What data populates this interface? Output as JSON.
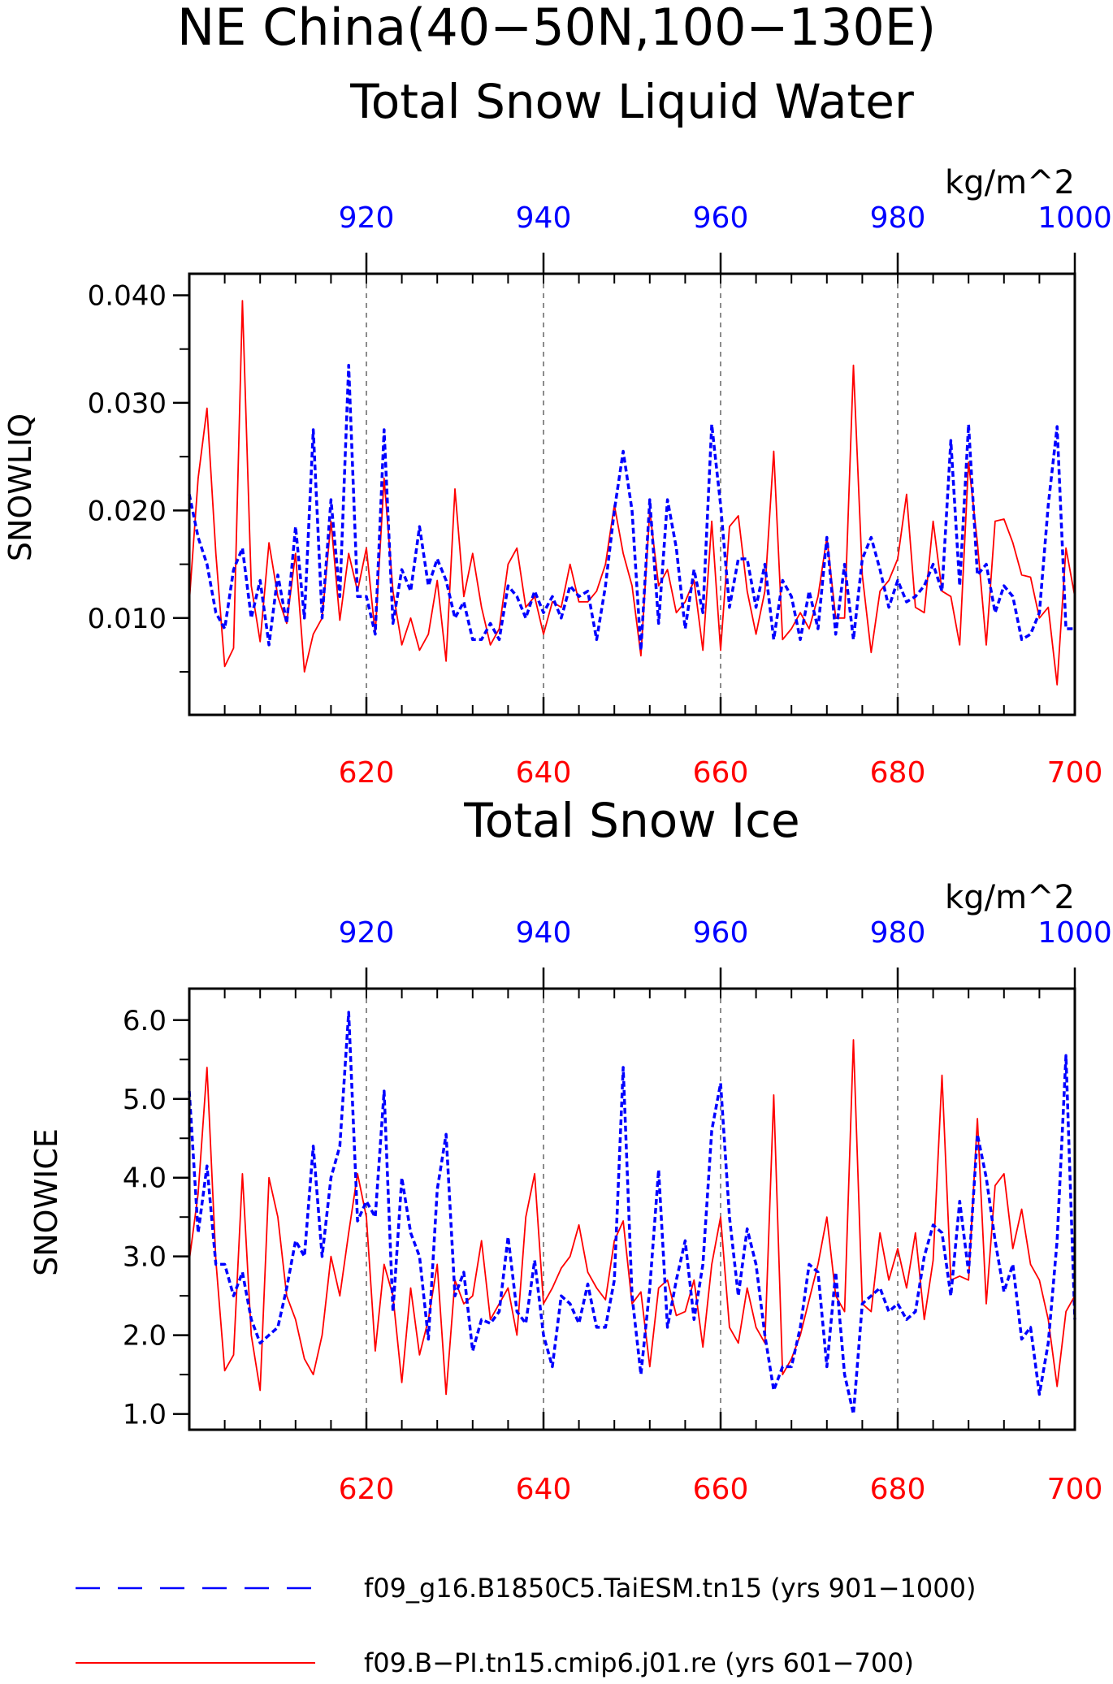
{
  "figure": {
    "title_line1": "NE China(40−50N,100−130E)"
  },
  "legend": {
    "colors": {
      "blue": "#0000ff",
      "red": "#ff0000"
    },
    "items": [
      {
        "label": "f09_g16.B1850C5.TaiESM.tn15 (yrs 901−1000)",
        "color": "#0000ff",
        "style": "dashed"
      },
      {
        "label": "f09.B−PI.tn15.cmip6.j01.re (yrs 601−700)",
        "color": "#ff0000",
        "style": "solid"
      }
    ]
  },
  "chart_data": [
    {
      "type": "line",
      "title": "Total Snow Liquid Water",
      "ylabel": "SNOWLIQ",
      "units": "kg/m^2",
      "ylim": [
        0.001,
        0.042
      ],
      "yticks": [
        "0.040",
        "0.030",
        "0.020",
        "0.010"
      ],
      "ytick_values": [
        0.04,
        0.03,
        0.02,
        0.01
      ],
      "xlim_bottom": [
        600,
        700
      ],
      "xticks_bottom": [
        "620",
        "640",
        "660",
        "680",
        "700"
      ],
      "xlim_top": [
        900,
        1000
      ],
      "xticks_top": [
        "920",
        "940",
        "960",
        "980",
        "1000"
      ],
      "grid": "vertical dashed at 620, 640, 660, 680",
      "series": [
        {
          "name": "f09.B−PI.tn15.cmip6.j01.re (yrs 601−700)",
          "axis": "bottom",
          "color": "#ff0000",
          "style": "solid",
          "x_start": 600,
          "values": [
            0.0115,
            0.023,
            0.0295,
            0.016,
            0.0055,
            0.0072,
            0.0395,
            0.013,
            0.0078,
            0.017,
            0.012,
            0.0095,
            0.016,
            0.005,
            0.0085,
            0.01,
            0.019,
            0.0098,
            0.016,
            0.0125,
            0.0165,
            0.0085,
            0.023,
            0.0125,
            0.0075,
            0.01,
            0.007,
            0.0085,
            0.0135,
            0.006,
            0.022,
            0.012,
            0.016,
            0.011,
            0.0075,
            0.009,
            0.015,
            0.0165,
            0.011,
            0.012,
            0.0085,
            0.0115,
            0.011,
            0.015,
            0.0115,
            0.0115,
            0.0125,
            0.015,
            0.0205,
            0.016,
            0.013,
            0.0065,
            0.02,
            0.013,
            0.0145,
            0.0105,
            0.0115,
            0.0135,
            0.007,
            0.019,
            0.007,
            0.0185,
            0.0195,
            0.0125,
            0.0085,
            0.0125,
            0.0255,
            0.008,
            0.009,
            0.0105,
            0.009,
            0.012,
            0.0175,
            0.01,
            0.01,
            0.0335,
            0.014,
            0.0068,
            0.0125,
            0.0135,
            0.0155,
            0.0215,
            0.011,
            0.0105,
            0.019,
            0.0125,
            0.012,
            0.0075,
            0.0245,
            0.017,
            0.0075,
            0.019,
            0.0192,
            0.017,
            0.014,
            0.0138,
            0.01,
            0.011,
            0.0038,
            0.0165,
            0.012
          ]
        },
        {
          "name": "f09_g16.B1850C5.TaiESM.tn15 (yrs 901−1000)",
          "axis": "top",
          "color": "#0000ff",
          "style": "dashed",
          "x_start": 900,
          "values": [
            0.0215,
            0.0175,
            0.015,
            0.0105,
            0.009,
            0.0145,
            0.0165,
            0.01,
            0.0135,
            0.0075,
            0.014,
            0.0095,
            0.0185,
            0.01,
            0.0275,
            0.01,
            0.021,
            0.012,
            0.0335,
            0.012,
            0.012,
            0.0085,
            0.0275,
            0.0095,
            0.0145,
            0.0125,
            0.0185,
            0.013,
            0.0155,
            0.0135,
            0.01,
            0.0115,
            0.008,
            0.008,
            0.0095,
            0.008,
            0.013,
            0.012,
            0.01,
            0.0125,
            0.0105,
            0.012,
            0.01,
            0.013,
            0.012,
            0.0125,
            0.008,
            0.013,
            0.02,
            0.0255,
            0.02,
            0.007,
            0.021,
            0.0095,
            0.021,
            0.0165,
            0.009,
            0.0145,
            0.0105,
            0.028,
            0.0205,
            0.011,
            0.0155,
            0.0155,
            0.011,
            0.015,
            0.008,
            0.0135,
            0.012,
            0.008,
            0.0125,
            0.009,
            0.0175,
            0.0085,
            0.015,
            0.008,
            0.0155,
            0.0175,
            0.0145,
            0.011,
            0.0135,
            0.0115,
            0.012,
            0.013,
            0.015,
            0.0125,
            0.0265,
            0.013,
            0.028,
            0.014,
            0.015,
            0.0105,
            0.013,
            0.012,
            0.008,
            0.0085,
            0.0105,
            0.0205,
            0.0278,
            0.009,
            0.009
          ]
        }
      ]
    },
    {
      "type": "line",
      "title": "Total Snow Ice",
      "ylabel": "SNOWICE",
      "units": "kg/m^2",
      "ylim": [
        0.8,
        6.4
      ],
      "yticks": [
        "6.0",
        "5.0",
        "4.0",
        "3.0",
        "2.0",
        "1.0"
      ],
      "ytick_values": [
        6.0,
        5.0,
        4.0,
        3.0,
        2.0,
        1.0
      ],
      "xlim_bottom": [
        600,
        700
      ],
      "xticks_bottom": [
        "620",
        "640",
        "660",
        "680",
        "700"
      ],
      "xlim_top": [
        900,
        1000
      ],
      "xticks_top": [
        "920",
        "940",
        "960",
        "980",
        "1000"
      ],
      "grid": "vertical dashed at 620, 640, 660, 680",
      "series": [
        {
          "name": "f09.B−PI.tn15.cmip6.j01.re (yrs 601−700)",
          "axis": "bottom",
          "color": "#ff0000",
          "style": "solid",
          "x_start": 600,
          "values": [
            2.95,
            3.8,
            5.4,
            2.95,
            1.55,
            1.75,
            4.05,
            2.0,
            1.3,
            4.0,
            3.5,
            2.5,
            2.2,
            1.7,
            1.5,
            2.0,
            3.0,
            2.5,
            3.3,
            4.05,
            3.5,
            1.8,
            2.9,
            2.5,
            1.4,
            2.6,
            1.75,
            2.2,
            2.9,
            1.25,
            2.7,
            2.4,
            2.5,
            3.2,
            2.2,
            2.4,
            2.6,
            2.0,
            3.5,
            4.05,
            2.4,
            2.6,
            2.85,
            3.0,
            3.4,
            2.8,
            2.6,
            2.45,
            3.2,
            3.45,
            2.4,
            2.55,
            1.6,
            2.6,
            2.7,
            2.25,
            2.3,
            2.7,
            1.85,
            2.9,
            3.5,
            2.1,
            1.9,
            2.6,
            2.1,
            1.9,
            5.05,
            1.5,
            1.7,
            2.0,
            2.45,
            2.9,
            3.5,
            2.5,
            2.3,
            5.75,
            2.4,
            2.3,
            3.3,
            2.7,
            3.1,
            2.6,
            3.3,
            2.2,
            2.95,
            5.3,
            2.7,
            2.75,
            2.7,
            4.75,
            2.4,
            3.9,
            4.05,
            3.1,
            3.6,
            2.9,
            2.7,
            2.2,
            1.35,
            2.3,
            2.5
          ]
        },
        {
          "name": "f09_g16.B1850C5.TaiESM.tn15 (yrs 901−1000)",
          "axis": "top",
          "color": "#0000ff",
          "style": "dashed",
          "x_start": 900,
          "values": [
            5.1,
            3.3,
            4.15,
            2.9,
            2.9,
            2.5,
            2.8,
            2.2,
            1.9,
            2.0,
            2.1,
            2.6,
            3.2,
            3.0,
            4.4,
            3.0,
            4.0,
            4.4,
            6.1,
            3.45,
            3.7,
            3.5,
            5.1,
            2.3,
            4.0,
            3.3,
            3.0,
            1.95,
            3.85,
            4.55,
            2.5,
            2.8,
            1.8,
            2.2,
            2.15,
            2.3,
            3.25,
            2.3,
            2.15,
            2.95,
            2.0,
            1.6,
            2.5,
            2.4,
            2.15,
            2.65,
            2.1,
            2.1,
            2.7,
            5.4,
            2.5,
            1.5,
            2.6,
            4.1,
            2.1,
            2.7,
            3.2,
            2.2,
            2.9,
            4.6,
            5.2,
            3.5,
            2.5,
            3.35,
            2.9,
            2.0,
            1.3,
            1.6,
            1.6,
            2.1,
            2.9,
            2.8,
            1.6,
            2.8,
            1.5,
            1.0,
            2.4,
            2.5,
            2.6,
            2.3,
            2.4,
            2.2,
            2.3,
            3.0,
            3.4,
            3.3,
            2.5,
            3.7,
            2.8,
            4.55,
            4.0,
            3.2,
            2.55,
            2.9,
            1.95,
            2.1,
            1.25,
            1.9,
            3.2,
            5.55,
            2.2
          ]
        }
      ]
    }
  ]
}
